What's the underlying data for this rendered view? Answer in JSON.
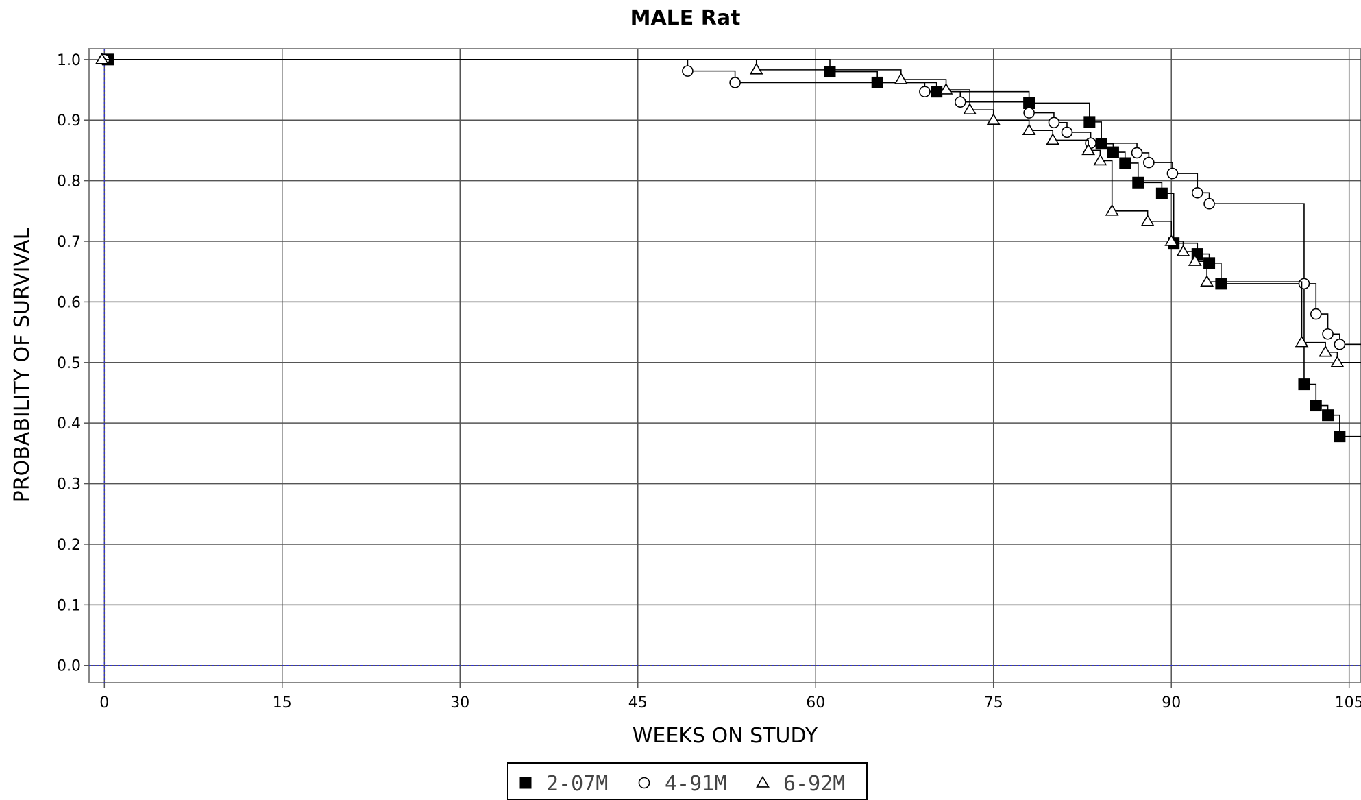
{
  "chart_data": {
    "type": "line",
    "step": true,
    "title": "MALE Rat",
    "xlabel": "WEEKS ON STUDY",
    "ylabel": "PROBABILITY OF SURVIVAL",
    "xlim": [
      -1,
      106
    ],
    "ylim": [
      -0.015,
      1.01
    ],
    "xticks": [
      0,
      15,
      30,
      45,
      60,
      75,
      90,
      105
    ],
    "xtick_labels": [
      "0",
      "15",
      "30",
      "45",
      "60",
      "75",
      "90",
      "105"
    ],
    "yticks": [
      0.0,
      0.1,
      0.2,
      0.3,
      0.4,
      0.5,
      0.6,
      0.7,
      0.8,
      0.9,
      1.0
    ],
    "ytick_labels": [
      "0.0",
      "0.1",
      "0.2",
      "0.3",
      "0.4",
      "0.5",
      "0.6",
      "0.7",
      "0.8",
      "0.9",
      "1.0"
    ],
    "grid": true,
    "legend_position": "bottom-center",
    "series": [
      {
        "name": "2-07M",
        "marker": "filled-square",
        "end_x": 106,
        "points": [
          {
            "x": 0.3,
            "y": 1.0
          },
          {
            "x": 61.2,
            "y": 0.98
          },
          {
            "x": 65.2,
            "y": 0.962
          },
          {
            "x": 70.2,
            "y": 0.947
          },
          {
            "x": 78.0,
            "y": 0.928
          },
          {
            "x": 83.1,
            "y": 0.897
          },
          {
            "x": 84.1,
            "y": 0.861
          },
          {
            "x": 85.1,
            "y": 0.847
          },
          {
            "x": 86.1,
            "y": 0.829
          },
          {
            "x": 87.2,
            "y": 0.797
          },
          {
            "x": 89.2,
            "y": 0.779
          },
          {
            "x": 90.2,
            "y": 0.697
          },
          {
            "x": 92.2,
            "y": 0.679
          },
          {
            "x": 93.2,
            "y": 0.664
          },
          {
            "x": 94.2,
            "y": 0.63
          },
          {
            "x": 101.2,
            "y": 0.464
          },
          {
            "x": 102.2,
            "y": 0.429
          },
          {
            "x": 103.2,
            "y": 0.413
          },
          {
            "x": 104.2,
            "y": 0.378
          }
        ]
      },
      {
        "name": "4-91M",
        "marker": "open-circle",
        "end_x": 106,
        "points": [
          {
            "x": 0.0,
            "y": 1.0
          },
          {
            "x": 49.2,
            "y": 0.981
          },
          {
            "x": 53.2,
            "y": 0.962
          },
          {
            "x": 69.2,
            "y": 0.947
          },
          {
            "x": 72.2,
            "y": 0.93
          },
          {
            "x": 78.0,
            "y": 0.912
          },
          {
            "x": 80.1,
            "y": 0.896
          },
          {
            "x": 81.2,
            "y": 0.88
          },
          {
            "x": 83.2,
            "y": 0.862
          },
          {
            "x": 87.1,
            "y": 0.846
          },
          {
            "x": 88.1,
            "y": 0.83
          },
          {
            "x": 90.1,
            "y": 0.812
          },
          {
            "x": 92.2,
            "y": 0.78
          },
          {
            "x": 93.2,
            "y": 0.762
          },
          {
            "x": 101.2,
            "y": 0.63
          },
          {
            "x": 102.2,
            "y": 0.58
          },
          {
            "x": 103.2,
            "y": 0.547
          },
          {
            "x": 104.2,
            "y": 0.53
          }
        ]
      },
      {
        "name": "6-92M",
        "marker": "open-triangle",
        "end_x": 106,
        "points": [
          {
            "x": -0.2,
            "y": 1.0
          },
          {
            "x": 55.0,
            "y": 0.983
          },
          {
            "x": 67.2,
            "y": 0.967
          },
          {
            "x": 71.0,
            "y": 0.95
          },
          {
            "x": 73.0,
            "y": 0.917
          },
          {
            "x": 75.0,
            "y": 0.9
          },
          {
            "x": 78.0,
            "y": 0.883
          },
          {
            "x": 80.0,
            "y": 0.867
          },
          {
            "x": 83.0,
            "y": 0.85
          },
          {
            "x": 84.0,
            "y": 0.833
          },
          {
            "x": 85.0,
            "y": 0.75
          },
          {
            "x": 88.0,
            "y": 0.733
          },
          {
            "x": 90.0,
            "y": 0.7
          },
          {
            "x": 91.0,
            "y": 0.683
          },
          {
            "x": 92.0,
            "y": 0.667
          },
          {
            "x": 93.0,
            "y": 0.633
          },
          {
            "x": 101.0,
            "y": 0.533
          },
          {
            "x": 103.0,
            "y": 0.517
          },
          {
            "x": 104.0,
            "y": 0.5
          }
        ]
      }
    ]
  }
}
